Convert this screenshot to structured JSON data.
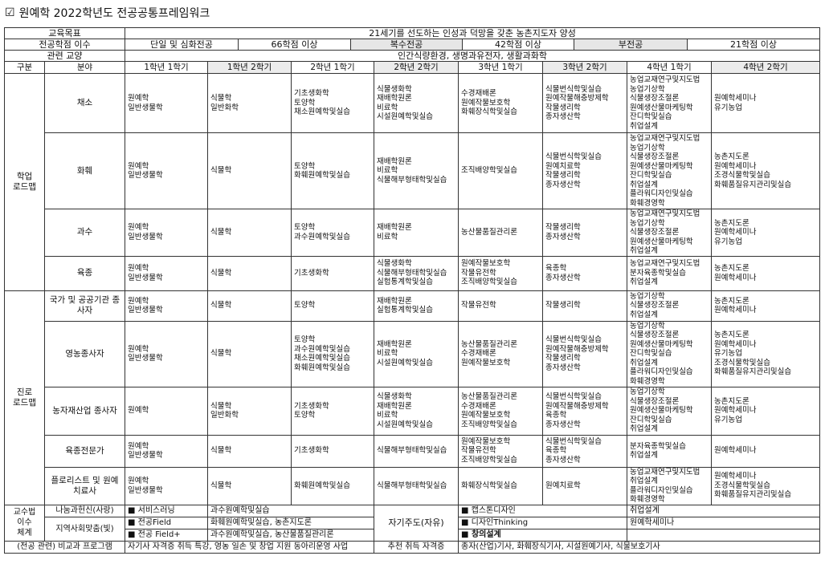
{
  "title": "원예학 2022학년도 전공공통프레임워크",
  "title_icon": "checkbox-icon",
  "goal": {
    "label": "교육목표",
    "value": "21세기를 선도하는 인성과 덕망을 갖춘 농촌지도자 양성"
  },
  "credits": {
    "label": "전공학점 이수",
    "single_label": "단일 및 심화전공",
    "single_value": "66학점 이상",
    "double_label": "복수전공",
    "double_value": "42학점 이상",
    "minor_label": "부전공",
    "minor_value": "21학점 이상"
  },
  "liberal": {
    "label": "관련 교양",
    "value": "인간식량환경, 생명과유전자, 생활과화학"
  },
  "headers": {
    "category": "구분",
    "field": "분야",
    "semesters": [
      "1학년 1학기",
      "1학년 2학기",
      "2학년 1학기",
      "2학년 2학기",
      "3학년 1학기",
      "3학년 2학기",
      "4학년 1학기",
      "4학년 2학기"
    ]
  },
  "groups": [
    {
      "label": "학업\n로드맵",
      "rows": [
        {
          "field": "채소",
          "cells": [
            [
              "원예학",
              "일반생물학"
            ],
            [
              "식물학",
              "일반화학"
            ],
            [
              "기초생화학",
              "토양학",
              "채소원예학및실습"
            ],
            [
              "식물생화학",
              "재배학원론",
              "비료학",
              "시설원예학및실습"
            ],
            [
              "수경재배론",
              "원예작물보호학",
              "화훼장식학및실습"
            ],
            [
              "식물번식학및실습",
              "원예작물해충방제학",
              "작물생리학",
              "종자생산학"
            ],
            [
              "농업교재연구및지도법",
              "농업기상학",
              "식물생장조절론",
              "원예생산물마케팅학",
              "잔디학및실습",
              "취업설계"
            ],
            [
              "원예학세미나",
              "유기농업"
            ]
          ]
        },
        {
          "field": "화훼",
          "cells": [
            [
              "원예학",
              "일반생물학"
            ],
            [
              "식물학"
            ],
            [
              "토양학",
              "화훼원예학및실습"
            ],
            [
              "재배학원론",
              "비료학",
              "식물해부형태학및실습"
            ],
            [
              "조직배양학및실습"
            ],
            [
              "식물번식학및실습",
              "원예치료학",
              "작물생리학",
              "종자생산학"
            ],
            [
              "농업교재연구및지도법",
              "농업기상학",
              "식물생장조절론",
              "원예생산물마케팅학",
              "잔디학및실습",
              "취업설계",
              "플라워디자인및실습",
              "화훼경영학"
            ],
            [
              "농촌지도론",
              "원예학세미나",
              "조경식물학및실습",
              "화훼품질유지관리및실습"
            ]
          ]
        },
        {
          "field": "과수",
          "cells": [
            [
              "원예학",
              "일반생물학"
            ],
            [
              "식물학"
            ],
            [
              "토양학",
              "과수원예학및실습"
            ],
            [
              "재배학원론",
              "비료학"
            ],
            [
              "농산물품질관리론"
            ],
            [
              "작물생리학",
              "종자생산학"
            ],
            [
              "농업교재연구및지도법",
              "농업기상학",
              "식물생장조절론",
              "원예생산물마케팅학",
              "취업설계"
            ],
            [
              "농촌지도론",
              "원예학세미나",
              "유기농업"
            ]
          ]
        },
        {
          "field": "육종",
          "cells": [
            [
              "원예학",
              "일반생물학"
            ],
            [
              "식물학"
            ],
            [
              "기초생화학"
            ],
            [
              "식물생화학",
              "식물해부형태학및실습",
              "실험통계학및실습"
            ],
            [
              "원예작물보호학",
              "작물유전학",
              "조직배양학및실습"
            ],
            [
              "육종학",
              "종자생산학"
            ],
            [
              "농업교재연구및지도법",
              "분자육종학및실습",
              "취업설계"
            ],
            [
              "농촌지도론",
              "원예학세미나"
            ]
          ]
        }
      ]
    },
    {
      "label": "진로\n로드맵",
      "rows": [
        {
          "field": "국가 및 공공기관 종사자",
          "cells": [
            [
              "원예학",
              "일반생물학"
            ],
            [
              "식물학"
            ],
            [
              "토양학"
            ],
            [
              "재배학원론",
              "실험통계학및실습"
            ],
            [
              "작물유전학"
            ],
            [
              "작물생리학"
            ],
            [
              "농업기상학",
              "식물생장조절론",
              "취업설계"
            ],
            [
              "농촌지도론",
              "원예학세미나"
            ]
          ]
        },
        {
          "field": "영농종사자",
          "cells": [
            [
              "원예학",
              "일반생물학"
            ],
            [
              "식물학"
            ],
            [
              "토양학",
              "과수원예학및실습",
              "채소원예학및실습",
              "화훼원예학및실습"
            ],
            [
              "재배학원론",
              "비료학",
              "시설원예학및실습"
            ],
            [
              "농산물품질관리론",
              "수경재배론",
              "원예작물보호학"
            ],
            [
              "식물번식학및실습",
              "원예작물해충방제학",
              "작물생리학",
              "종자생산학"
            ],
            [
              "농업기상학",
              "식물생장조절론",
              "원예생산물마케팅학",
              "잔디학및실습",
              "취업설계",
              "플라워디자인및실습",
              "화훼경영학"
            ],
            [
              "농촌지도론",
              "원예학세미나",
              "유기농업",
              "조경식물학및실습",
              "화훼품질유지관리및실습"
            ]
          ]
        },
        {
          "field": "농자재산업 종사자",
          "cells": [
            [
              "원예학"
            ],
            [
              "식물학",
              "일반화학"
            ],
            [
              "기초생화학",
              "토양학"
            ],
            [
              "식물생화학",
              "재배학원론",
              "비료학",
              "시설원예학및실습"
            ],
            [
              "농산물품질관리론",
              "수경재배론",
              "원예작물보호학",
              "조직배양학및실습"
            ],
            [
              "식물번식학및실습",
              "원예작물해충방제학",
              "육종학",
              "종자생산학"
            ],
            [
              "농업기상학",
              "식물생장조절론",
              "원예생산물마케팅학",
              "잔디학및실습",
              "취업설계"
            ],
            [
              "농촌지도론",
              "원예학세미나",
              "유기농업"
            ]
          ]
        },
        {
          "field": "육종전문가",
          "cells": [
            [
              "원예학",
              "일반생물학"
            ],
            [
              "식물학"
            ],
            [
              "기초생화학"
            ],
            [
              "식물해부형태학및실습"
            ],
            [
              "원예작물보호학",
              "작물유전학",
              "조직배양학및실습"
            ],
            [
              "식물번식학및실습",
              "육종학",
              "종자생산학"
            ],
            [
              "분자육종학및실습",
              "취업설계"
            ],
            [
              "원예학세미나"
            ]
          ]
        },
        {
          "field": "플로리스트 및 원예치료사",
          "cells": [
            [
              "원예학",
              "일반생물학"
            ],
            [
              "식물학"
            ],
            [
              "화훼원예학및실습"
            ],
            [
              "식물해부형태학및실습"
            ],
            [
              "화훼장식학및실습"
            ],
            [
              "원예치료학"
            ],
            [
              "농업교재연구및지도법",
              "취업설계",
              "플라워디자인및실습",
              "화훼경영학"
            ],
            [
              "원예학세미나",
              "조경식물학및실습",
              "화훼품질유지관리및실습"
            ]
          ]
        }
      ]
    }
  ],
  "teaching": {
    "label": "교수법\n이수\n체계",
    "sharing_label": "나눔과헌신(사랑)",
    "community_label": "지역사회맞춤(빛)",
    "self_label": "자기주도(자유)",
    "items": [
      {
        "method": "■ 서비스러닝",
        "courses": "과수원예학및실습",
        "self_method": "■ 캡스톤디자인",
        "self_courses": "취업설계"
      },
      {
        "method": "■ 전공Field",
        "courses": "화훼원예학및실습, 농촌지도론",
        "self_method": "■ 디자인Thinking",
        "self_courses": "원예학세미나"
      },
      {
        "method": "■ 전공 Field+",
        "courses": "과수원예학및실습, 농산물품질관리론",
        "self_method": "■ 창의설계",
        "self_courses": ""
      }
    ]
  },
  "extracurricular": {
    "label": "(전공 관련) 비교과 프로그램",
    "value": "자기사 자격증 취득 특강, 영농 일손 및 창업 지원 동아리운영 사업",
    "cert_label": "추천 취득 자격증",
    "cert_value": "종자(산업)기사, 화훼장식기사, 시설원예기사, 식물보호기사"
  }
}
